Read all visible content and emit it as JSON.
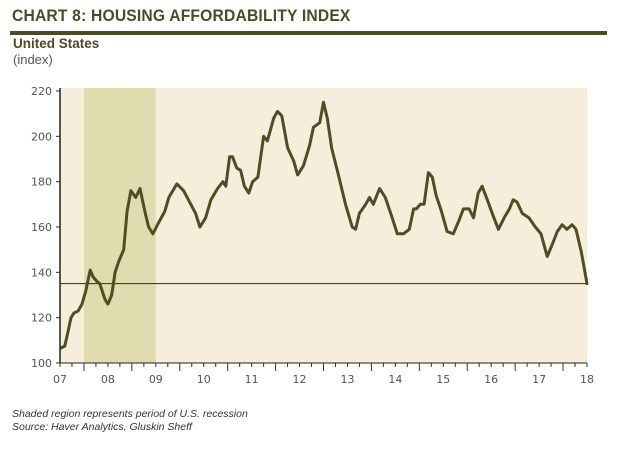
{
  "header": {
    "title": "CHART 8: HOUSING AFFORDABILITY INDEX",
    "subtitle": "United States",
    "unit": "(index)"
  },
  "footer": {
    "note": "Shaded region represents period of U.S. recession",
    "source": "Source: Haver Analytics, Gluskin Sheff"
  },
  "colors": {
    "line": "#4f4d25",
    "plot_bg": "#f6eedb",
    "recession": "#e1dbb0",
    "rule": "#4a4a24",
    "reference_line": "#2f2e18"
  },
  "chart_data": {
    "type": "line",
    "title": "CHART 8: HOUSING AFFORDABILITY INDEX",
    "subtitle": "United States",
    "xlabel": "",
    "ylabel": "(index)",
    "xlim": [
      2007,
      2018
    ],
    "ylim": [
      100,
      220
    ],
    "x_ticks": [
      2007,
      2008,
      2009,
      2010,
      2011,
      2012,
      2013,
      2014,
      2015,
      2016,
      2017,
      2018
    ],
    "x_tick_labels": [
      "07",
      "08",
      "09",
      "10",
      "11",
      "12",
      "13",
      "14",
      "15",
      "16",
      "17",
      "18"
    ],
    "y_ticks": [
      100,
      120,
      140,
      160,
      180,
      200,
      220
    ],
    "y_tick_labels": [
      "100",
      "120",
      "140",
      "160",
      "180",
      "200",
      "220"
    ],
    "grid": false,
    "recession_shading": {
      "start": 2007.5,
      "end": 2009.0,
      "label": "U.S. recession"
    },
    "reference_line": {
      "y": 135
    },
    "series": [
      {
        "name": "Housing Affordability Index",
        "x": [
          2007.02,
          2007.1,
          2007.17,
          2007.23,
          2007.29,
          2007.38,
          2007.46,
          2007.54,
          2007.63,
          2007.69,
          2007.77,
          2007.83,
          2007.94,
          2008.0,
          2008.08,
          2008.15,
          2008.23,
          2008.33,
          2008.4,
          2008.48,
          2008.58,
          2008.67,
          2008.77,
          2008.85,
          2008.94,
          2009.06,
          2009.19,
          2009.27,
          2009.44,
          2009.58,
          2009.73,
          2009.83,
          2009.92,
          2010.04,
          2010.15,
          2010.29,
          2010.4,
          2010.46,
          2010.54,
          2010.6,
          2010.69,
          2010.77,
          2010.85,
          2010.94,
          2011.02,
          2011.13,
          2011.25,
          2011.33,
          2011.46,
          2011.54,
          2011.63,
          2011.75,
          2011.88,
          2011.96,
          2012.08,
          2012.21,
          2012.29,
          2012.42,
          2012.5,
          2012.58,
          2012.67,
          2012.81,
          2012.96,
          2013.1,
          2013.17,
          2013.25,
          2013.38,
          2013.46,
          2013.54,
          2013.67,
          2013.79,
          2013.92,
          2014.04,
          2014.17,
          2014.29,
          2014.38,
          2014.44,
          2014.52,
          2014.6,
          2014.69,
          2014.77,
          2014.85,
          2014.96,
          2015.08,
          2015.21,
          2015.33,
          2015.42,
          2015.54,
          2015.63,
          2015.73,
          2015.81,
          2015.92,
          2016.04,
          2016.15,
          2016.27,
          2016.38,
          2016.46,
          2016.54,
          2016.65,
          2016.79,
          2016.92,
          2017.04,
          2017.17,
          2017.27,
          2017.38,
          2017.48,
          2017.58,
          2017.69,
          2017.77,
          2017.88,
          2018.0
        ],
        "values": [
          106.6,
          107.5,
          114,
          120,
          122,
          123,
          126,
          132,
          141,
          138,
          136,
          135,
          128,
          126,
          130,
          140,
          145,
          150,
          167,
          176,
          173,
          177,
          167,
          160,
          157,
          162,
          167,
          173,
          179,
          176,
          170,
          166,
          160,
          164,
          172,
          177,
          180,
          178,
          191,
          191,
          186,
          185,
          178,
          175,
          180,
          182,
          200,
          198,
          208,
          211,
          209,
          195,
          189,
          183,
          187,
          196,
          204,
          206,
          215,
          208,
          195,
          183,
          170,
          160,
          159,
          166,
          170,
          173,
          170,
          177,
          173,
          165,
          157,
          157,
          159,
          168,
          168,
          170,
          170,
          184,
          182,
          174,
          167,
          158,
          157,
          163,
          168,
          168,
          164,
          175,
          178,
          172,
          165,
          159,
          164,
          168,
          172,
          171,
          166,
          164,
          160,
          157,
          147,
          152,
          158,
          161,
          159,
          161,
          159,
          149,
          135
        ]
      }
    ]
  }
}
